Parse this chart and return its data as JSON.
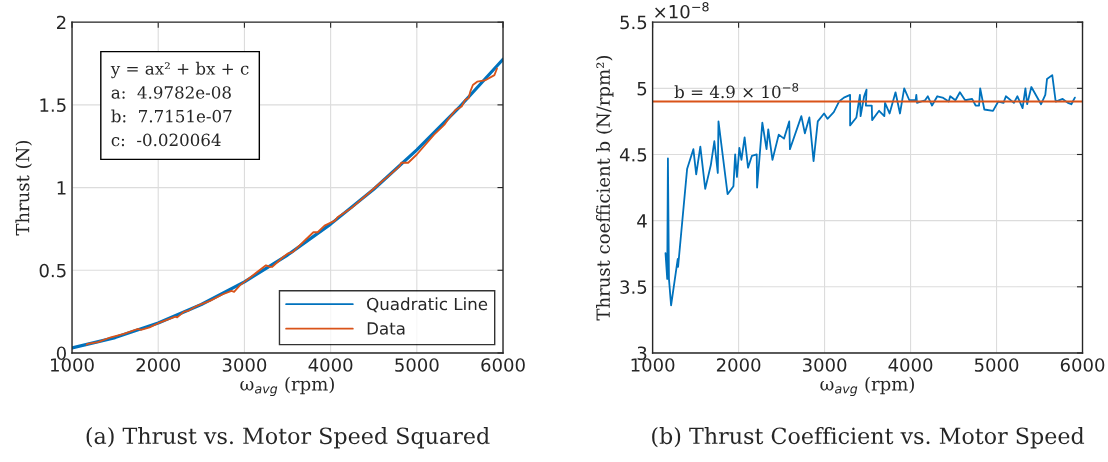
{
  "chart_data": [
    {
      "type": "line",
      "title": "(a) Thrust vs. Motor Speed Squared",
      "xlabel": "ω$_{avg}$ (rpm)",
      "ylabel": "Thrust (N)",
      "xlim": [
        1000,
        6000
      ],
      "xticks": [
        1000,
        2000,
        3000,
        4000,
        5000,
        6000
      ],
      "ylim": [
        0,
        2
      ],
      "yticks": [
        0,
        0.5,
        1,
        1.5,
        2
      ],
      "grid": true,
      "legend": "bottom right",
      "annotations": [
        "y = ax² + bx + c",
        "a:  4.9782e-08",
        "b:  7.7151e-07",
        "c:  -0.020064"
      ],
      "series": [
        {
          "name": "Quadratic Line",
          "color": "#0072bd",
          "x": [
            1000,
            1500,
            2000,
            2500,
            3000,
            3500,
            4000,
            4500,
            5000,
            5500,
            6000
          ],
          "values": [
            0.03,
            0.093,
            0.181,
            0.293,
            0.43,
            0.592,
            0.779,
            0.99,
            1.228,
            1.49,
            1.776
          ]
        },
        {
          "name": "Data",
          "color": "#d95319",
          "x": [
            1170,
            1180,
            1300,
            1450,
            1600,
            1760,
            1800,
            1900,
            2000,
            2100,
            2200,
            2220,
            2300,
            2350,
            2450,
            2600,
            2750,
            2850,
            2880,
            2950,
            3100,
            3250,
            3300,
            3320,
            3450,
            3500,
            3560,
            3700,
            3800,
            3850,
            3930,
            4050,
            4080,
            4250,
            4450,
            4600,
            4650,
            4800,
            4820,
            4900,
            5000,
            5200,
            5300,
            5320,
            5360,
            5450,
            5520,
            5560,
            5600,
            5620,
            5650,
            5700,
            5800,
            5900,
            5930
          ],
          "values": [
            0.05,
            0.055,
            0.065,
            0.095,
            0.115,
            0.145,
            0.14,
            0.155,
            0.18,
            0.2,
            0.22,
            0.215,
            0.25,
            0.255,
            0.285,
            0.315,
            0.355,
            0.375,
            0.37,
            0.41,
            0.47,
            0.53,
            0.52,
            0.52,
            0.58,
            0.6,
            0.61,
            0.68,
            0.73,
            0.73,
            0.77,
            0.8,
            0.82,
            0.88,
            0.97,
            1.04,
            1.06,
            1.13,
            1.15,
            1.15,
            1.2,
            1.32,
            1.37,
            1.38,
            1.41,
            1.47,
            1.49,
            1.53,
            1.54,
            1.58,
            1.62,
            1.64,
            1.65,
            1.68,
            1.72
          ]
        }
      ]
    },
    {
      "type": "line",
      "title": "(b) Thrust Coefficient vs. Motor Speed",
      "xlabel": "ω$_{avg}$ (rpm)",
      "ylabel": "Thrust coefficient b (N/rpm²)",
      "xlim": [
        1000,
        6000
      ],
      "xticks": [
        1000,
        2000,
        3000,
        4000,
        5000,
        6000
      ],
      "ylim": [
        3,
        5.5
      ],
      "yticks": [
        3,
        3.5,
        4,
        4.5,
        5,
        5.5
      ],
      "grid": true,
      "annotations": [
        "×10$^{−8}$"
      ],
      "ref_lines": [
        {
          "axis": "y",
          "value": 4.9,
          "label": "b = 4.9 × 10$^{−8}$",
          "color": "#d95319"
        }
      ],
      "series": [
        {
          "color": "#0072bd",
          "x": [
            1150,
            1170,
            1178,
            1190,
            1215,
            1292,
            1296,
            1401,
            1474,
            1507,
            1555,
            1612,
            1677,
            1718,
            1758,
            1766,
            1872,
            1940,
            1960,
            1981,
            2009,
            2033,
            2070,
            2110,
            2155,
            2211,
            2215,
            2276,
            2325,
            2345,
            2394,
            2467,
            2528,
            2589,
            2597,
            2730,
            2771,
            2823,
            2872,
            2921,
            2994,
            3034,
            3107,
            3168,
            3225,
            3297,
            3297,
            3370,
            3411,
            3419,
            3460,
            3488,
            3480,
            3549,
            3553,
            3634,
            3695,
            3703,
            3756,
            3825,
            3877,
            3926,
            3986,
            4059,
            4067,
            4075,
            4169,
            4201,
            4250,
            4311,
            4372,
            4444,
            4461,
            4522,
            4574,
            4635,
            4716,
            4757,
            4797,
            4810,
            4858,
            4959,
            5020,
            5081,
            5109,
            5202,
            5243,
            5303,
            5336,
            5356,
            5405,
            5518,
            5567,
            5587,
            5648,
            5688,
            5769,
            5830,
            5870,
            5911
          ],
          "values": [
            3.755,
            3.56,
            4.47,
            3.56,
            3.36,
            3.71,
            3.65,
            4.39,
            4.54,
            4.35,
            4.56,
            4.24,
            4.42,
            4.6,
            4.36,
            4.75,
            4.2,
            4.26,
            4.5,
            4.33,
            4.55,
            4.46,
            4.63,
            4.4,
            4.49,
            4.5,
            4.25,
            4.74,
            4.54,
            4.69,
            4.46,
            4.65,
            4.62,
            4.75,
            4.54,
            4.79,
            4.66,
            4.78,
            4.45,
            4.75,
            4.81,
            4.77,
            4.82,
            4.9,
            4.93,
            4.95,
            4.72,
            4.78,
            4.95,
            4.79,
            4.94,
            4.99,
            4.87,
            4.87,
            4.76,
            4.83,
            4.79,
            4.89,
            4.81,
            4.97,
            4.81,
            5.0,
            4.91,
            4.91,
            4.95,
            4.89,
            4.91,
            4.94,
            4.87,
            4.94,
            4.93,
            4.9,
            4.94,
            4.91,
            4.97,
            4.91,
            4.92,
            4.87,
            4.87,
            5.0,
            4.84,
            4.83,
            4.9,
            4.89,
            4.94,
            4.89,
            4.94,
            4.85,
            5.0,
            4.88,
            5.01,
            4.88,
            4.95,
            5.07,
            5.1,
            4.9,
            4.92,
            4.89,
            4.88,
            4.93
          ]
        }
      ]
    }
  ]
}
